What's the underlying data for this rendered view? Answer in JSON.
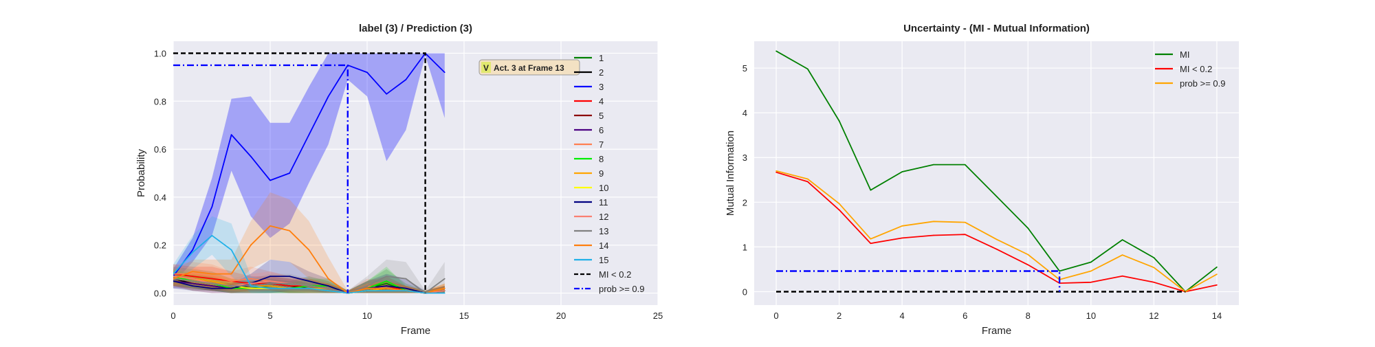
{
  "chart_data": [
    {
      "type": "line",
      "title": "label (3) / Prediction (3)",
      "xlabel": "Frame",
      "ylabel": "Probability",
      "xlim": [
        0,
        25
      ],
      "ylim": [
        -0.05,
        1.05
      ],
      "xticks": [
        0,
        5,
        10,
        15,
        20,
        25
      ],
      "yticks": [
        0.0,
        0.2,
        0.4,
        0.6,
        0.8,
        1.0
      ],
      "x": [
        0,
        1,
        2,
        3,
        4,
        5,
        6,
        7,
        8,
        9,
        10,
        11,
        12,
        13,
        14
      ],
      "series": [
        {
          "name": "1",
          "color": "#008000",
          "values": [
            0.07,
            0.06,
            0.05,
            0.03,
            0.02,
            0.03,
            0.02,
            0.03,
            0.02,
            0.0,
            0.02,
            0.04,
            0.01,
            0.0,
            0.01
          ],
          "band": [
            0.04,
            0.04,
            0.04,
            0.03,
            0.03,
            0.03,
            0.03,
            0.04,
            0.03,
            0.01,
            0.03,
            0.06,
            0.03,
            0.01,
            0.02
          ]
        },
        {
          "name": "2",
          "color": "#000000",
          "values": [
            0.06,
            0.04,
            0.03,
            0.02,
            0.03,
            0.04,
            0.03,
            0.02,
            0.02,
            0.0,
            0.01,
            0.02,
            0.01,
            0.0,
            0.01
          ],
          "band": [
            0.03,
            0.03,
            0.02,
            0.02,
            0.02,
            0.03,
            0.03,
            0.02,
            0.02,
            0.01,
            0.02,
            0.03,
            0.02,
            0.01,
            0.02
          ]
        },
        {
          "name": "3",
          "color": "#0000ff",
          "values": [
            0.07,
            0.18,
            0.36,
            0.66,
            0.57,
            0.47,
            0.5,
            0.66,
            0.82,
            0.95,
            0.92,
            0.83,
            0.89,
            1.0,
            0.92
          ],
          "band": [
            0.03,
            0.05,
            0.12,
            0.15,
            0.25,
            0.24,
            0.21,
            0.2,
            0.2,
            0.06,
            0.1,
            0.28,
            0.21,
            0.01,
            0.19
          ]
        },
        {
          "name": "4",
          "color": "#ff0000",
          "values": [
            0.08,
            0.07,
            0.06,
            0.05,
            0.04,
            0.04,
            0.03,
            0.03,
            0.02,
            0.0,
            0.02,
            0.03,
            0.01,
            0.0,
            0.01
          ],
          "band": [
            0.04,
            0.04,
            0.05,
            0.04,
            0.03,
            0.03,
            0.03,
            0.03,
            0.02,
            0.01,
            0.03,
            0.04,
            0.02,
            0.01,
            0.02
          ]
        },
        {
          "name": "5",
          "color": "#8b0000",
          "values": [
            0.06,
            0.05,
            0.04,
            0.03,
            0.03,
            0.03,
            0.02,
            0.02,
            0.02,
            0.0,
            0.01,
            0.02,
            0.01,
            0.0,
            0.01
          ],
          "band": [
            0.03,
            0.03,
            0.03,
            0.02,
            0.02,
            0.02,
            0.02,
            0.02,
            0.02,
            0.01,
            0.02,
            0.03,
            0.02,
            0.01,
            0.02
          ]
        },
        {
          "name": "6",
          "color": "#4b0082",
          "values": [
            0.05,
            0.04,
            0.03,
            0.02,
            0.02,
            0.02,
            0.02,
            0.02,
            0.01,
            0.0,
            0.01,
            0.01,
            0.01,
            0.0,
            0.01
          ],
          "band": [
            0.03,
            0.02,
            0.02,
            0.02,
            0.02,
            0.02,
            0.02,
            0.02,
            0.01,
            0.01,
            0.02,
            0.02,
            0.01,
            0.01,
            0.01
          ]
        },
        {
          "name": "7",
          "color": "#ff7f50",
          "values": [
            0.08,
            0.08,
            0.07,
            0.05,
            0.06,
            0.05,
            0.04,
            0.03,
            0.02,
            0.0,
            0.03,
            0.02,
            0.01,
            0.0,
            0.02
          ],
          "band": [
            0.04,
            0.05,
            0.05,
            0.04,
            0.05,
            0.04,
            0.03,
            0.03,
            0.02,
            0.01,
            0.03,
            0.03,
            0.02,
            0.01,
            0.02
          ]
        },
        {
          "name": "8",
          "color": "#00ee00",
          "values": [
            0.07,
            0.05,
            0.04,
            0.02,
            0.02,
            0.02,
            0.02,
            0.03,
            0.03,
            0.0,
            0.02,
            0.05,
            0.01,
            0.0,
            0.01
          ],
          "band": [
            0.03,
            0.03,
            0.03,
            0.02,
            0.02,
            0.02,
            0.02,
            0.03,
            0.03,
            0.01,
            0.03,
            0.06,
            0.02,
            0.01,
            0.02
          ]
        },
        {
          "name": "9",
          "color": "#ffa500",
          "values": [
            0.07,
            0.06,
            0.05,
            0.03,
            0.03,
            0.03,
            0.02,
            0.02,
            0.02,
            0.0,
            0.01,
            0.02,
            0.01,
            0.0,
            0.02
          ],
          "band": [
            0.03,
            0.03,
            0.03,
            0.03,
            0.02,
            0.02,
            0.02,
            0.02,
            0.02,
            0.01,
            0.02,
            0.03,
            0.02,
            0.01,
            0.02
          ]
        },
        {
          "name": "10",
          "color": "#ffff00",
          "values": [
            0.06,
            0.05,
            0.04,
            0.03,
            0.02,
            0.02,
            0.02,
            0.02,
            0.01,
            0.0,
            0.01,
            0.01,
            0.01,
            0.0,
            0.01
          ],
          "band": [
            0.03,
            0.03,
            0.02,
            0.02,
            0.02,
            0.02,
            0.02,
            0.02,
            0.01,
            0.01,
            0.01,
            0.02,
            0.01,
            0.01,
            0.01
          ]
        },
        {
          "name": "11",
          "color": "#000080",
          "values": [
            0.05,
            0.03,
            0.02,
            0.02,
            0.04,
            0.07,
            0.07,
            0.05,
            0.03,
            0.0,
            0.02,
            0.03,
            0.02,
            0.0,
            0.01
          ],
          "band": [
            0.03,
            0.02,
            0.02,
            0.02,
            0.04,
            0.07,
            0.06,
            0.04,
            0.03,
            0.01,
            0.03,
            0.05,
            0.04,
            0.01,
            0.02
          ]
        },
        {
          "name": "12",
          "color": "#fa8072",
          "values": [
            0.07,
            0.06,
            0.04,
            0.03,
            0.04,
            0.05,
            0.04,
            0.03,
            0.02,
            0.0,
            0.02,
            0.02,
            0.01,
            0.0,
            0.01
          ],
          "band": [
            0.04,
            0.05,
            0.04,
            0.03,
            0.04,
            0.04,
            0.03,
            0.03,
            0.02,
            0.01,
            0.02,
            0.03,
            0.02,
            0.01,
            0.02
          ]
        },
        {
          "name": "13",
          "color": "#808080",
          "values": [
            0.06,
            0.05,
            0.04,
            0.03,
            0.03,
            0.04,
            0.04,
            0.03,
            0.02,
            0.0,
            0.03,
            0.07,
            0.06,
            0.0,
            0.06
          ],
          "band": [
            0.03,
            0.03,
            0.03,
            0.02,
            0.03,
            0.04,
            0.04,
            0.03,
            0.02,
            0.01,
            0.04,
            0.07,
            0.07,
            0.01,
            0.07
          ]
        },
        {
          "name": "14",
          "color": "#ff7f0e",
          "values": [
            0.06,
            0.09,
            0.08,
            0.08,
            0.2,
            0.28,
            0.26,
            0.18,
            0.06,
            0.0,
            0.02,
            0.02,
            0.01,
            0.0,
            0.02
          ],
          "band": [
            0.03,
            0.05,
            0.06,
            0.06,
            0.1,
            0.14,
            0.13,
            0.12,
            0.09,
            0.01,
            0.02,
            0.03,
            0.02,
            0.01,
            0.02
          ]
        },
        {
          "name": "15",
          "color": "#1fb0e8",
          "values": [
            0.08,
            0.17,
            0.24,
            0.18,
            0.03,
            0.02,
            0.02,
            0.02,
            0.01,
            0.0,
            0.01,
            0.01,
            0.01,
            0.0,
            0.0
          ],
          "band": [
            0.04,
            0.07,
            0.08,
            0.11,
            0.04,
            0.03,
            0.02,
            0.02,
            0.02,
            0.01,
            0.01,
            0.02,
            0.01,
            0.01,
            0.01
          ]
        }
      ],
      "reference_lines": [
        {
          "name": "MI < 0.2",
          "color": "#000000",
          "style": "dashed",
          "x": [
            0,
            13,
            13
          ],
          "y": [
            1.0,
            1.0,
            0.0
          ]
        },
        {
          "name": "prob >= 0.9",
          "color": "#0000ff",
          "style": "dashdot",
          "x": [
            0,
            9,
            9
          ],
          "y": [
            0.95,
            0.95,
            0.0
          ]
        }
      ],
      "annotation": {
        "badge": "V",
        "text": "Act. 3 at Frame 13"
      },
      "legend_position": "right"
    },
    {
      "type": "line",
      "title": "Uncertainty - (MI - Mutual Information)",
      "xlabel": "Frame",
      "ylabel": "Mutual Information",
      "xlim": [
        -0.7,
        14.7
      ],
      "ylim": [
        -0.3,
        5.6
      ],
      "xticks": [
        0,
        2,
        4,
        6,
        8,
        10,
        12,
        14
      ],
      "yticks": [
        0,
        1,
        2,
        3,
        4,
        5
      ],
      "x": [
        0,
        1,
        2,
        3,
        4,
        5,
        6,
        7,
        8,
        9,
        10,
        11,
        12,
        13,
        14
      ],
      "series": [
        {
          "name": "MI",
          "color": "#008000",
          "values": [
            5.38,
            4.98,
            3.82,
            2.27,
            2.68,
            2.84,
            2.84,
            2.13,
            1.42,
            0.46,
            0.66,
            1.16,
            0.76,
            0.0,
            0.55
          ]
        },
        {
          "name": "MI < 0.2",
          "color": "#ff0000",
          "values": [
            2.67,
            2.46,
            1.83,
            1.08,
            1.2,
            1.26,
            1.28,
            0.95,
            0.6,
            0.19,
            0.21,
            0.35,
            0.21,
            0.0,
            0.15
          ]
        },
        {
          "name": "prob >= 0.9",
          "color": "#ffa500",
          "values": [
            2.7,
            2.52,
            1.97,
            1.18,
            1.47,
            1.57,
            1.55,
            1.17,
            0.83,
            0.27,
            0.46,
            0.82,
            0.54,
            0.0,
            0.39
          ]
        }
      ],
      "reference_lines": [
        {
          "color": "#000000",
          "style": "dashed",
          "x": [
            0,
            13
          ],
          "y": [
            0.0,
            0.0
          ]
        },
        {
          "color": "#0000ff",
          "style": "dashdot",
          "x": [
            0,
            9,
            9
          ],
          "y": [
            0.46,
            0.46,
            0.0
          ]
        }
      ],
      "legend_position": "top-right"
    }
  ]
}
